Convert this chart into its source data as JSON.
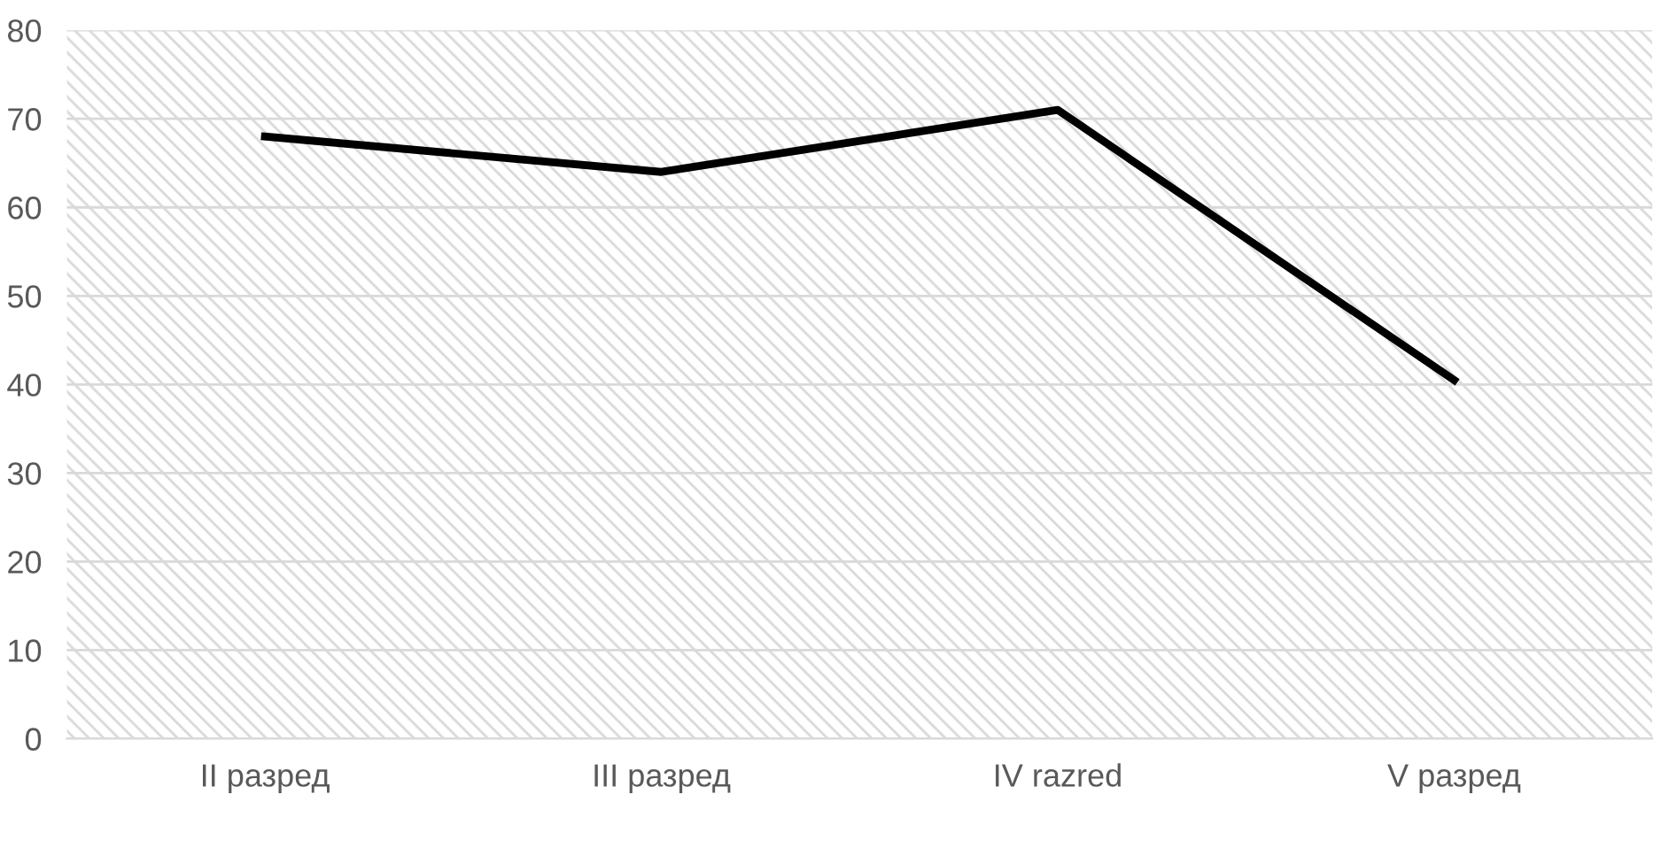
{
  "chart_data": {
    "type": "line",
    "categories": [
      "II разред",
      "III разред",
      "IV razred",
      "V разред"
    ],
    "series": [
      {
        "color": "#000000",
        "values": [
          68,
          64,
          71,
          40.5
        ]
      }
    ],
    "ylim": [
      0,
      80
    ],
    "yticks": [
      0,
      10,
      20,
      30,
      40,
      50,
      60,
      70,
      80
    ],
    "grid": "y",
    "marker": "none",
    "line_style": "solid"
  }
}
